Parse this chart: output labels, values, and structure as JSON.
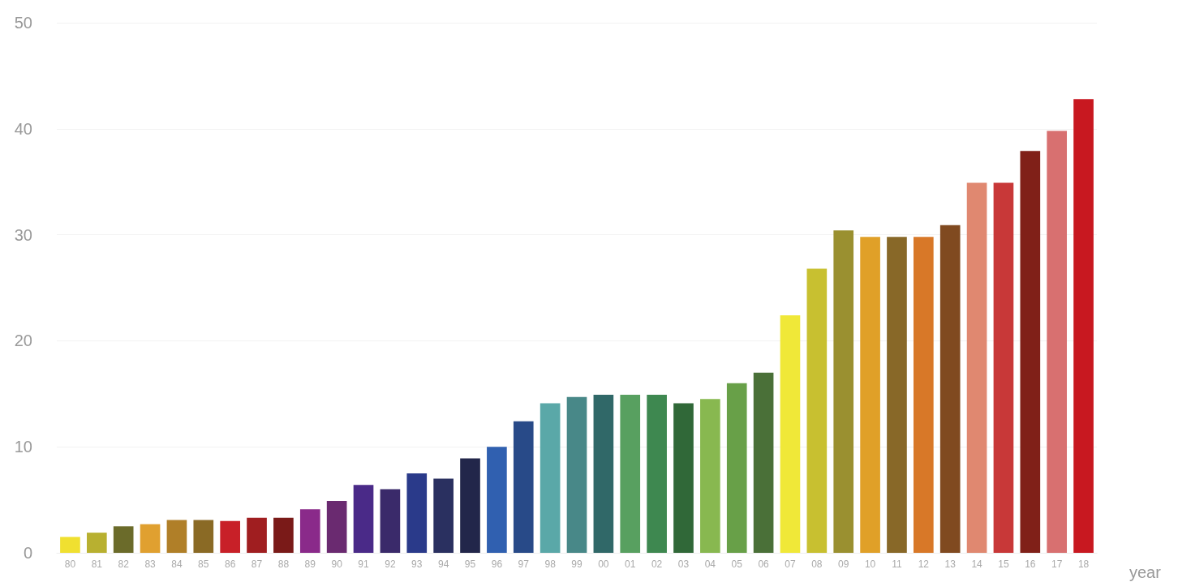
{
  "chart_data": {
    "type": "bar",
    "xlabel": "year",
    "categories": [
      "80",
      "81",
      "82",
      "83",
      "84",
      "85",
      "86",
      "87",
      "88",
      "89",
      "90",
      "91",
      "92",
      "93",
      "94",
      "95",
      "96",
      "97",
      "98",
      "99",
      "00",
      "01",
      "02",
      "03",
      "04",
      "05",
      "06",
      "07",
      "08",
      "09",
      "10",
      "11",
      "12",
      "13",
      "14",
      "15",
      "16",
      "17",
      "18"
    ],
    "values": [
      1.5,
      1.9,
      2.5,
      2.7,
      3.1,
      3.1,
      3.0,
      3.3,
      3.3,
      4.1,
      4.9,
      6.4,
      6.0,
      7.5,
      7.0,
      8.9,
      10.0,
      12.4,
      14.1,
      14.7,
      14.9,
      14.9,
      14.9,
      14.1,
      14.5,
      16.0,
      17.0,
      22.4,
      26.8,
      30.4,
      29.8,
      29.8,
      29.8,
      30.9,
      34.9,
      34.9,
      37.9,
      39.8,
      42.8
    ],
    "colors": [
      "#f0e030",
      "#b8b030",
      "#6b6b2a",
      "#e0a030",
      "#b07f28",
      "#8a6a25",
      "#c82028",
      "#a01e20",
      "#7a1a18",
      "#8a2a8a",
      "#6a2a70",
      "#4a2a88",
      "#3a2a6a",
      "#2a3a8a",
      "#2a3060",
      "#22264a",
      "#3060b0",
      "#284a88",
      "#5aa8a8",
      "#488888",
      "#306868",
      "#58a060",
      "#3e8850",
      "#306838",
      "#88b850",
      "#68a048",
      "#4a7038",
      "#f0e838",
      "#c8c030",
      "#9a9030",
      "#e0a028",
      "#886828",
      "#d87828",
      "#804a20",
      "#e08870",
      "#c83838",
      "#802018",
      "#d87070",
      "#c81820"
    ],
    "ylim": [
      0,
      50
    ],
    "yticks": [
      0,
      10,
      20,
      30,
      40,
      50
    ],
    "grid": "y"
  }
}
